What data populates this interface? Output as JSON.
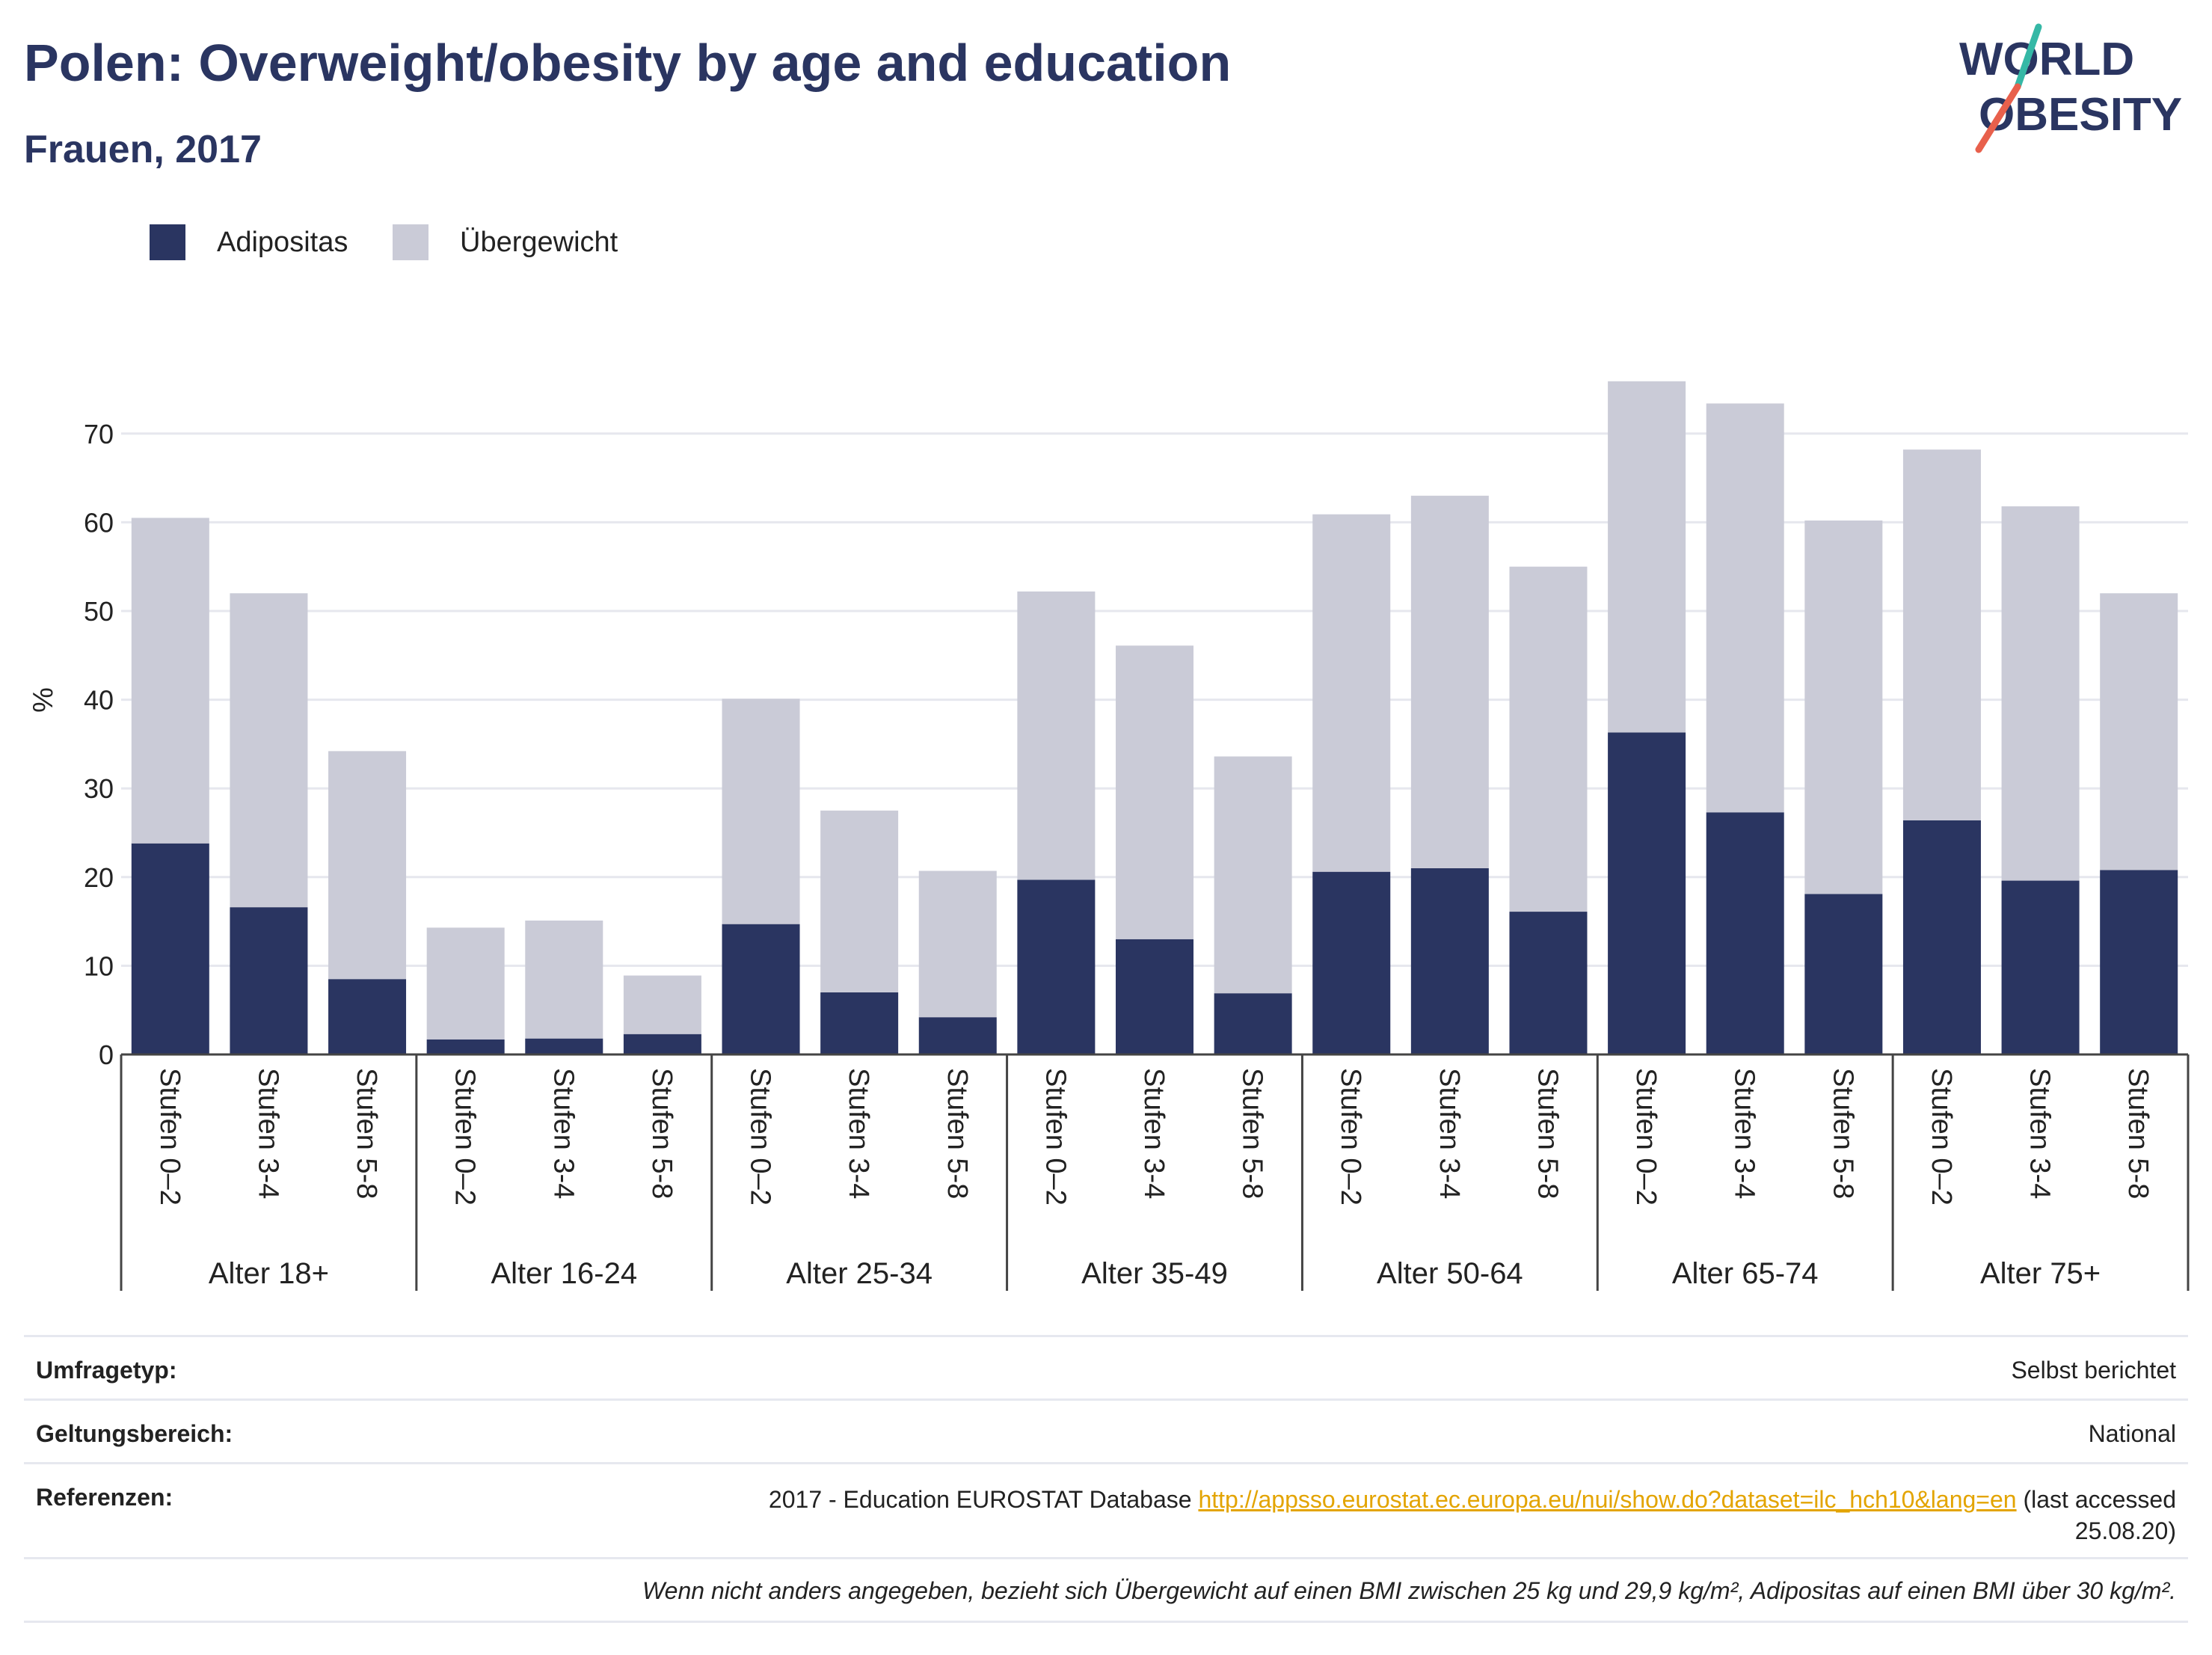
{
  "header": {
    "title": "Polen: Overweight/obesity by age and education",
    "subtitle": "Frauen, 2017"
  },
  "logo": {
    "line1": "WORLD",
    "line2": "OBESITY",
    "colors": [
      "#2a3561",
      "#35b8a6",
      "#e8604c"
    ]
  },
  "legend": {
    "items": [
      {
        "label": "Adipositas",
        "color": "#2a3561"
      },
      {
        "label": "Übergewicht",
        "color": "#cacbd7"
      }
    ]
  },
  "chart_data": {
    "type": "bar",
    "stacked": true,
    "ylabel": "%",
    "xlabel": "",
    "ylim": [
      0,
      80
    ],
    "yticks": [
      0,
      10,
      20,
      30,
      40,
      50,
      60,
      70
    ],
    "grid": true,
    "legend_position": "top-left",
    "groups": [
      {
        "label": "Alter 18+",
        "categories": [
          "Stufen 0–2",
          "Stufen 3-4",
          "Stufen 5-8"
        ]
      },
      {
        "label": "Alter 16-24",
        "categories": [
          "Stufen 0–2",
          "Stufen 3-4",
          "Stufen 5-8"
        ]
      },
      {
        "label": "Alter 25-34",
        "categories": [
          "Stufen 0–2",
          "Stufen 3-4",
          "Stufen 5-8"
        ]
      },
      {
        "label": "Alter 35-49",
        "categories": [
          "Stufen 0–2",
          "Stufen 3-4",
          "Stufen 5-8"
        ]
      },
      {
        "label": "Alter 50-64",
        "categories": [
          "Stufen 0–2",
          "Stufen 3-4",
          "Stufen 5-8"
        ]
      },
      {
        "label": "Alter 65-74",
        "categories": [
          "Stufen 0–2",
          "Stufen 3-4",
          "Stufen 5-8"
        ]
      },
      {
        "label": "Alter 75+",
        "categories": [
          "Stufen 0–2",
          "Stufen 3-4",
          "Stufen 5-8"
        ]
      }
    ],
    "series": [
      {
        "name": "Adipositas",
        "color": "#2a3561",
        "values": [
          23.8,
          16.6,
          8.5,
          1.7,
          1.8,
          2.3,
          14.7,
          7.0,
          4.2,
          19.7,
          13.0,
          6.9,
          20.6,
          21.0,
          16.1,
          36.3,
          27.3,
          18.1,
          26.4,
          19.6,
          20.8
        ]
      },
      {
        "name": "Übergewicht",
        "color": "#cacbd7",
        "values": [
          36.7,
          35.4,
          25.7,
          12.6,
          13.3,
          6.6,
          25.4,
          20.5,
          16.5,
          32.5,
          33.1,
          26.7,
          40.3,
          42.0,
          38.9,
          39.6,
          46.1,
          42.1,
          41.8,
          42.2,
          31.2
        ]
      }
    ]
  },
  "meta": {
    "survey_type_label": "Umfragetyp:",
    "survey_type_value": "Selbst berichtet",
    "coverage_label": "Geltungsbereich:",
    "coverage_value": "National",
    "references_label": "Referenzen:",
    "references_prefix": "2017 - Education EUROSTAT Database ",
    "references_link": "http://appsso.eurostat.ec.europa.eu/nui/show.do?dataset=ilc_hch10&lang=en",
    "references_suffix": " (last accessed",
    "references_date": "25.08.20)",
    "footnote": "Wenn nicht anders angegeben, bezieht sich Übergewicht auf einen BMI zwischen 25 kg und 29,9 kg/m², Adipositas auf einen BMI über 30 kg/m²."
  }
}
